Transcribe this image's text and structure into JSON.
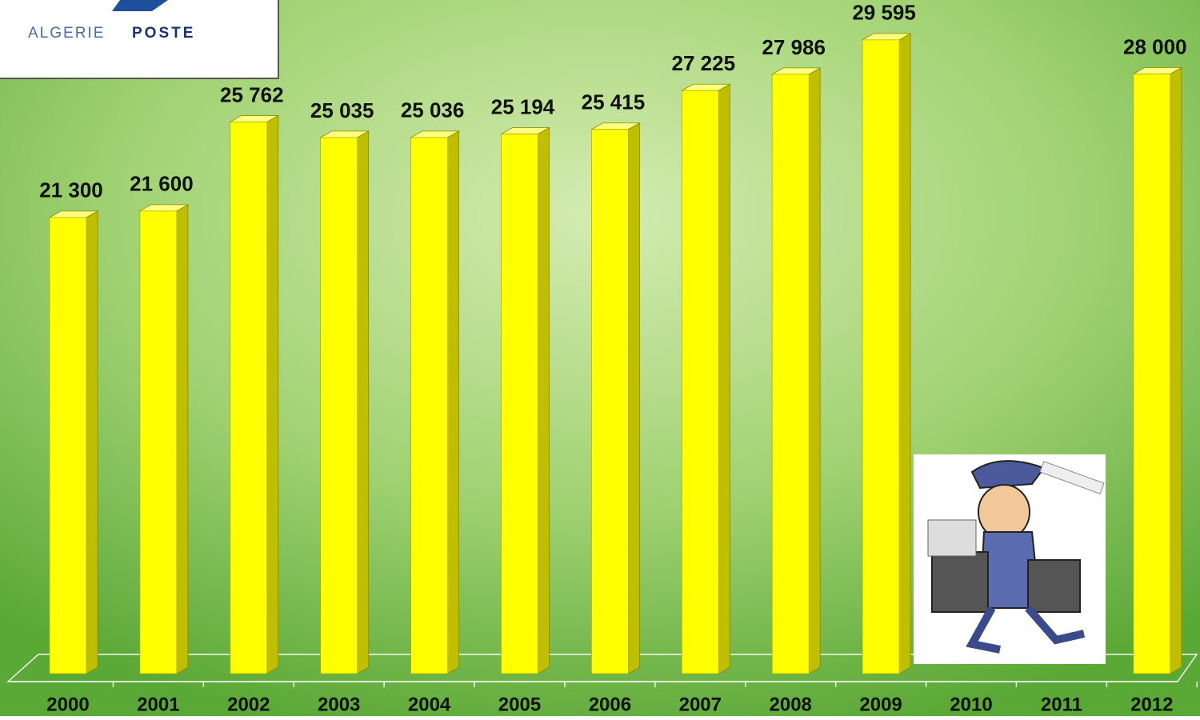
{
  "logo": {
    "word1": "ALGERIE",
    "word2": "POSTE"
  },
  "chart_data": {
    "type": "bar3d",
    "categories": [
      "2000",
      "2001",
      "2002",
      "2003",
      "2004",
      "2005",
      "2006",
      "2007",
      "2008",
      "2009",
      "2010",
      "2011",
      "2012"
    ],
    "values": [
      21300,
      21600,
      25762,
      25035,
      25036,
      25194,
      25415,
      27225,
      27986,
      29595,
      null,
      null,
      28000
    ],
    "value_labels": [
      "21 300",
      "21 600",
      "25 762",
      "25 035",
      "25 036",
      "25 194",
      "25 415",
      "27 225",
      "27 986",
      "29 595",
      null,
      null,
      "28 000"
    ],
    "color": "#ffff00",
    "ylim": [
      0,
      30000
    ]
  }
}
